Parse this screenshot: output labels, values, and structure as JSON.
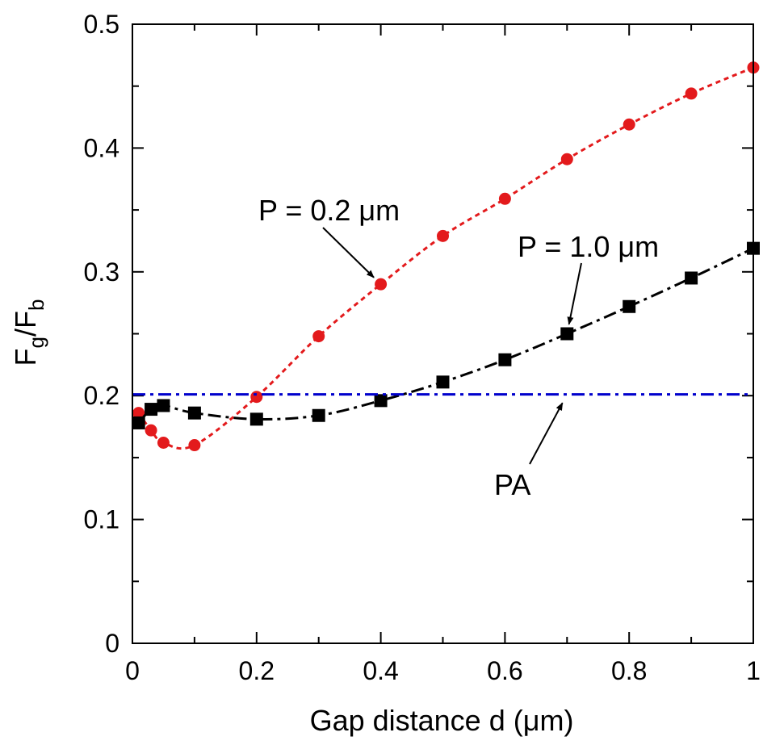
{
  "chart_data": {
    "type": "line",
    "xlabel": "Gap distance d (μm)",
    "ylabel": {
      "base": "F",
      "sub1": "g",
      "sep": "/F",
      "sub2": "b"
    },
    "xlim": [
      0,
      1
    ],
    "ylim": [
      0,
      0.5
    ],
    "x_ticks": [
      0,
      0.2,
      0.4,
      0.6,
      0.8,
      1
    ],
    "x_tick_labels": [
      "0",
      "0.2",
      "0.4",
      "0.6",
      "0.8",
      "1"
    ],
    "y_ticks": [
      0,
      0.1,
      0.2,
      0.3,
      0.4,
      0.5
    ],
    "y_tick_labels": [
      "0",
      "0.1",
      "0.2",
      "0.3",
      "0.4",
      "0.5"
    ],
    "grid": false,
    "series": [
      {
        "label": "P = 0.2 μm",
        "color": "#e31a1c",
        "marker": "circle",
        "line_style": "dotted",
        "x": [
          0.01,
          0.03,
          0.05,
          0.1,
          0.2,
          0.3,
          0.4,
          0.5,
          0.6,
          0.7,
          0.8,
          0.9,
          1.0
        ],
        "y": [
          0.186,
          0.172,
          0.162,
          0.16,
          0.199,
          0.248,
          0.29,
          0.329,
          0.359,
          0.391,
          0.419,
          0.444,
          0.465
        ]
      },
      {
        "label": "P = 1.0 μm",
        "color": "#000000",
        "marker": "square",
        "line_style": "dash-dot",
        "x": [
          0.01,
          0.03,
          0.05,
          0.1,
          0.2,
          0.3,
          0.4,
          0.5,
          0.6,
          0.7,
          0.8,
          0.9,
          1.0
        ],
        "y": [
          0.178,
          0.189,
          0.192,
          0.186,
          0.181,
          0.184,
          0.196,
          0.211,
          0.229,
          0.25,
          0.272,
          0.295,
          0.319
        ]
      },
      {
        "label": "PA",
        "color": "#0000cc",
        "marker": "none",
        "line_style": "dash-dot",
        "x": [
          0,
          1
        ],
        "y": [
          0.201,
          0.201
        ]
      }
    ],
    "annotations": [
      {
        "text": "P = 0.2 μm",
        "arrow_to": [
          0.4,
          0.29
        ]
      },
      {
        "text": "P = 1.0 μm",
        "arrow_to": [
          0.7,
          0.25
        ]
      },
      {
        "text": "PA",
        "arrow_to": [
          0.7,
          0.201
        ]
      }
    ]
  }
}
